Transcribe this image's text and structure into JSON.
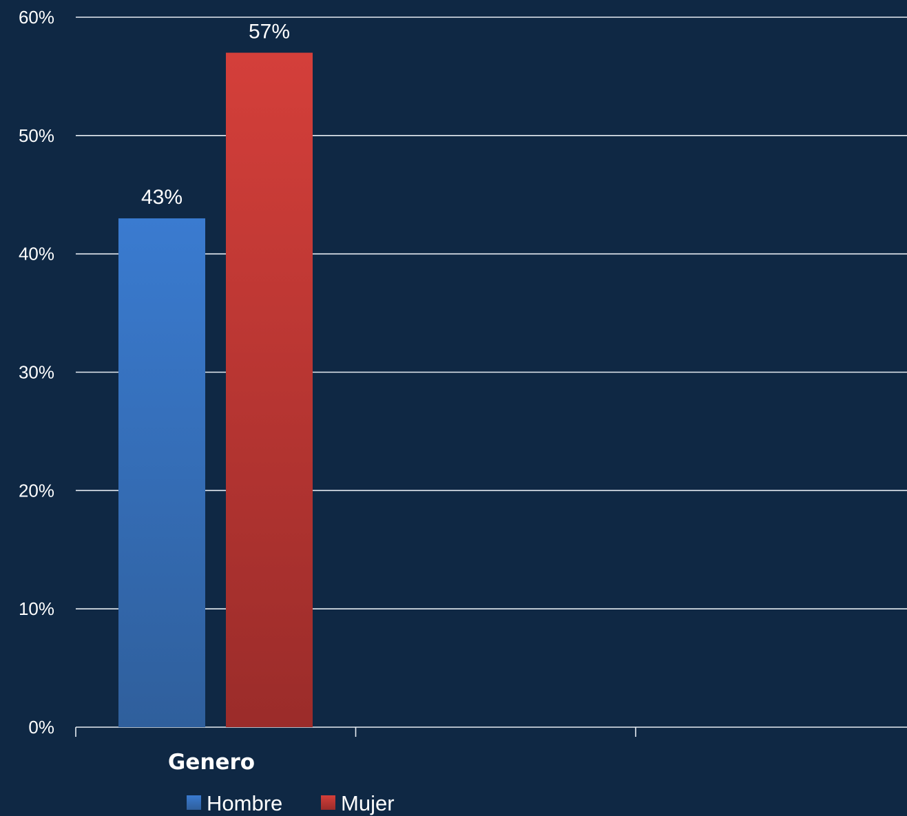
{
  "chart_data": {
    "type": "bar",
    "categories": [
      "Genero"
    ],
    "series": [
      {
        "name": "Hombre",
        "values": [
          43
        ],
        "value_labels": [
          "43%"
        ],
        "color_top": "#3a7bd0",
        "color_bottom": "#2f5f9c"
      },
      {
        "name": "Mujer",
        "values": [
          57
        ],
        "value_labels": [
          "57%"
        ],
        "color_top": "#d43f3a",
        "color_bottom": "#9b2c2a"
      }
    ],
    "ylim": [
      0,
      60
    ],
    "y_ticks": [
      0,
      10,
      20,
      30,
      40,
      50,
      60
    ],
    "y_tick_labels": [
      "0%",
      "10%",
      "20%",
      "30%",
      "40%",
      "50%",
      "60%"
    ],
    "grid": true,
    "legend_position": "bottom-left",
    "background": "#0f2844"
  }
}
